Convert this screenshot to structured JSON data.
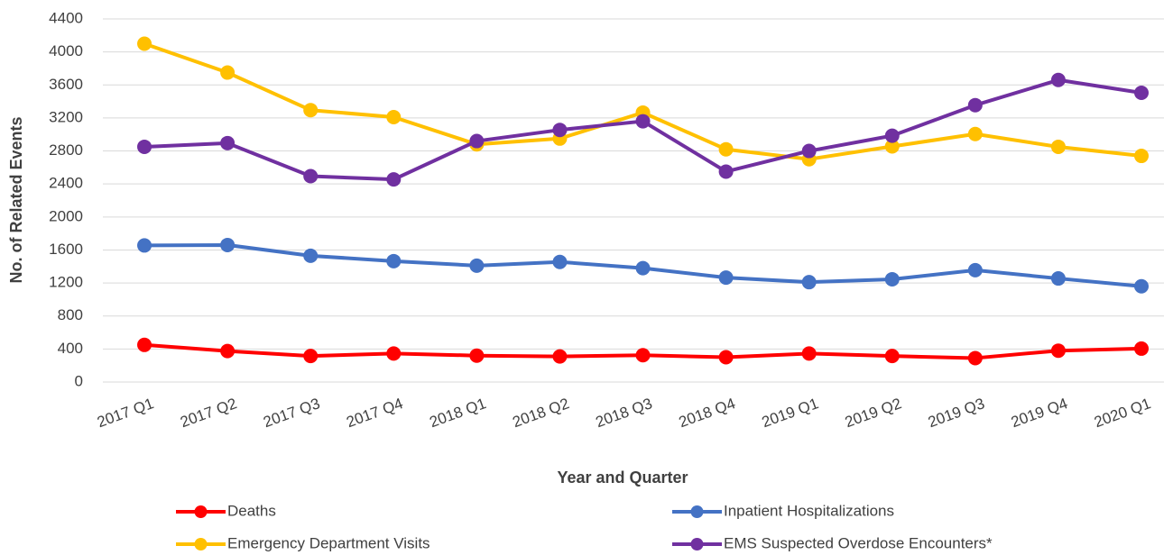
{
  "chart_data": {
    "type": "line",
    "x_label": "Year and Quarter",
    "y_label": "No. of Related Events",
    "categories": [
      "2017 Q1",
      "2017 Q2",
      "2017 Q3",
      "2017 Q4",
      "2018 Q1",
      "2018 Q2",
      "2018 Q3",
      "2018 Q4",
      "2019 Q1",
      "2019 Q2",
      "2019 Q3",
      "2019 Q4",
      "2020 Q1"
    ],
    "series": [
      {
        "name": "Deaths",
        "color": "#ff0000",
        "values": [
          450,
          375,
          315,
          345,
          320,
          310,
          325,
          300,
          345,
          315,
          290,
          380,
          405
        ]
      },
      {
        "name": "Inpatient Hospitalizations",
        "color": "#4472c4",
        "values": [
          1655,
          1660,
          1530,
          1465,
          1410,
          1455,
          1380,
          1265,
          1210,
          1245,
          1355,
          1255,
          1160
        ]
      },
      {
        "name": "Emergency Department Visits",
        "color": "#ffc000",
        "values": [
          4100,
          3750,
          3295,
          3210,
          2880,
          2950,
          3265,
          2820,
          2700,
          2855,
          3005,
          2850,
          2740
        ]
      },
      {
        "name": "EMS Suspected Overdose Encounters*",
        "color": "#7030a0",
        "values": [
          2850,
          2895,
          2495,
          2455,
          2920,
          3055,
          3160,
          2550,
          2800,
          2985,
          3355,
          3660,
          3505
        ]
      }
    ],
    "ylim": [
      0,
      4400
    ],
    "yticks": [
      0,
      400,
      800,
      1200,
      1600,
      2000,
      2400,
      2800,
      3200,
      3600,
      4000,
      4400
    ],
    "grid": true,
    "legend": "bottom"
  }
}
